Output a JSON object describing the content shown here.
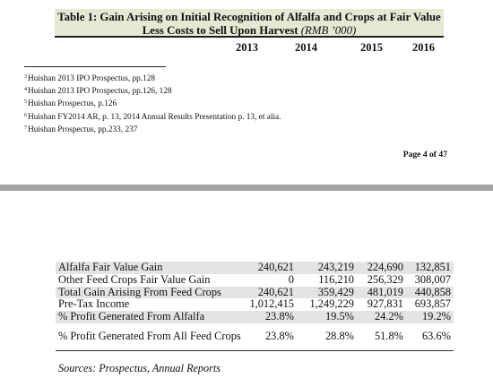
{
  "table_title": {
    "main": "Table 1: Gain Arising on Initial Recognition of Alfalfa and Crops at Fair Value Less Costs to Sell Upon Harvest",
    "unit": "(RMB ’000)"
  },
  "years": [
    "2013",
    "2014",
    "2015",
    "2016"
  ],
  "footnotes": [
    {
      "num": "3",
      "text": "Huishan 2013 IPO Prospectus, pp.128"
    },
    {
      "num": "4",
      "text": "Huishan 2013 IPO Prospectus, pp.126, 128"
    },
    {
      "num": "5",
      "text": "Huishan Prospectus, p.126"
    },
    {
      "num": "6",
      "text": "Huishan FY2014 AR, p. 13, 2014 Annual Results Presentation p. 13, et alia."
    },
    {
      "num": "7",
      "text": "Huishan Prospectus, pp.233, 237"
    }
  ],
  "page_number": "Page 4 of 47",
  "rows": [
    {
      "label": "Alfalfa Fair Value Gain",
      "values": [
        "240,621",
        "243,219",
        "224,690",
        "132,851"
      ]
    },
    {
      "label": "Other Feed Crops Fair Value Gain",
      "values": [
        "0",
        "116,210",
        "256,329",
        "308,007"
      ]
    },
    {
      "label": "Total Gain Arising From Feed Crops",
      "values": [
        "240,621",
        "359,429",
        "481,019",
        "440,858"
      ]
    },
    {
      "label": "Pre-Tax Income",
      "values": [
        "1,012,415",
        "1,249,229",
        "927,831",
        "693,857"
      ]
    },
    {
      "label": "% Profit Generated From Alfalfa",
      "values": [
        "23.8%",
        "19.5%",
        "24.2%",
        "19.2%"
      ]
    },
    {
      "label": "% Profit Generated From All Feed Crops",
      "values": [
        "23.8%",
        "28.8%",
        "51.8%",
        "63.6%"
      ]
    }
  ],
  "sources": "Sources: Prospectus, Annual Reports"
}
